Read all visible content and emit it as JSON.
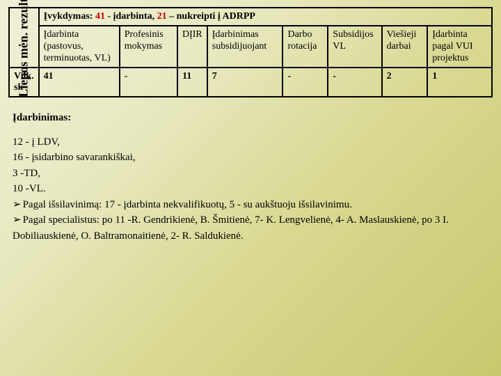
{
  "rot_label": "Liepos mėn. rezultatai",
  "title_pre": "Įvykdymas:  ",
  "title_num1": "41",
  "title_mid": " - įdarbinta, ",
  "title_num2": "21",
  "title_post": " – nukreipti į ADRPP",
  "headers": {
    "c0": "Įdarbinta (pastovus, terminuotas, VL)",
    "c1": "Profesinis mokymas",
    "c2": "DĮIR",
    "c3": "Įdarbinimas subsidijuojant",
    "c4": "Darbo rotacija",
    "c5": "Subsidijos VL",
    "c6": "Viešieji darbai",
    "c7": "Įdarbinta pagal VUI projektus"
  },
  "row_label": "Vilk. sk",
  "row": {
    "c0": "41",
    "c1": "-",
    "c2": "11",
    "c3": "7",
    "c4": "-",
    "c5": "-",
    "c6": "2",
    "c7": "1"
  },
  "body": {
    "heading": "Įdarbinimas:",
    "l1": "12 - į LDV,",
    "l2": "16 - įsidarbino savarankiškai,",
    "l3": "3 -TD,",
    "l4": "10 -VL.",
    "b1": "Pagal išsilavinimą: 17 - įdarbinta nekvalifikuotų, 5 - su aukštuoju išsilavinimu.",
    "b2": "Pagal specialistus: po 11 -R. Gendrikienė, B. Šmitienė, 7- K. Lengvelienė, 4- A. Maslauskienė, po 3 I. Dobiliauskienė, O. Baltramonaitienė, 2- R. Saldukienė."
  }
}
